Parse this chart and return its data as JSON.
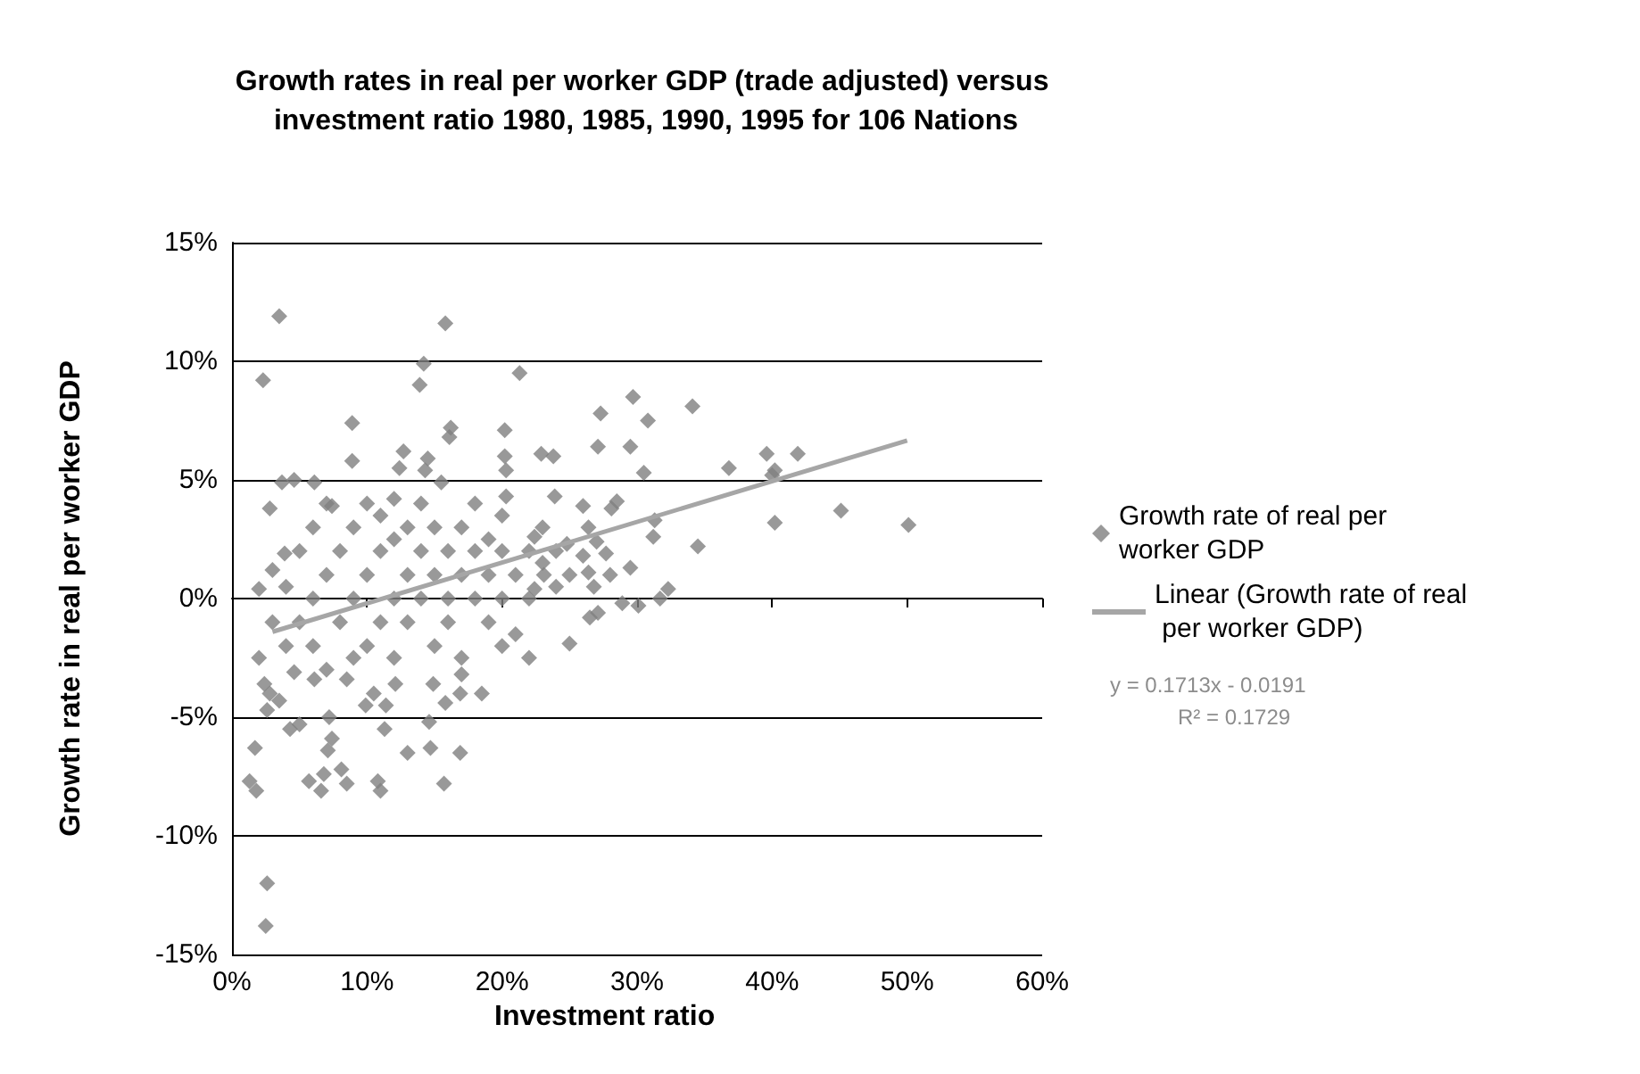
{
  "chart_data": {
    "type": "scatter",
    "title": "Growth rates in real per worker GDP (trade adjusted) versus investment ratio 1980, 1985, 1990, 1995 for 106 Nations",
    "xlabel": "Investment ratio",
    "ylabel": "Growth rate in real per worker GDP",
    "xlim": [
      0,
      60
    ],
    "xticks": [
      {
        "value": 0,
        "label": "0%"
      },
      {
        "value": 10,
        "label": "10%"
      },
      {
        "value": 20,
        "label": "20%"
      },
      {
        "value": 30,
        "label": "30%"
      },
      {
        "value": 40,
        "label": "40%"
      },
      {
        "value": 50,
        "label": "50%"
      },
      {
        "value": 60,
        "label": "60%"
      }
    ],
    "ylim": [
      -15,
      15
    ],
    "yticks": [
      {
        "value": -15,
        "label": "-15%"
      },
      {
        "value": -10,
        "label": "-10%"
      },
      {
        "value": -5,
        "label": "-5%"
      },
      {
        "value": 0,
        "label": "0%"
      },
      {
        "value": 5,
        "label": "5%"
      },
      {
        "value": 10,
        "label": "10%"
      },
      {
        "value": 15,
        "label": "15%"
      }
    ],
    "grid": "y",
    "legend": "right",
    "marker": "diamond",
    "annotations": [
      "y = 0.1713x - 0.0191",
      "R² = 0.1729"
    ],
    "series": [
      {
        "name": "Growth rate of real per worker GDP",
        "color": "#808080",
        "x": [
          3.5,
          15.8,
          2.3,
          14.2,
          13.9,
          8.9,
          16.2,
          16.1,
          8.9,
          12.7,
          12.4,
          14.5,
          14.3,
          3.7,
          4.6,
          6.1,
          15.5,
          2.8,
          7.4,
          3.9,
          2.0,
          2.6,
          2.5,
          1.7,
          1.3,
          1.8,
          5.7,
          6.8,
          6.6,
          8.1,
          8.5,
          10.8,
          11.0,
          15.7,
          13.0,
          14.7,
          16.9,
          11.3,
          14.6,
          7.2,
          7.4,
          7.1,
          4.3,
          5.0,
          2.6,
          3.5,
          2.4,
          2.8,
          8.5,
          9.9,
          12.1,
          14.9,
          15.8,
          16.9,
          18.5,
          10.5,
          11.4,
          4.6,
          6.1,
          21.3,
          29.7,
          34.1,
          27.3,
          30.8,
          27.1,
          29.5,
          20.2,
          20.2,
          20.3,
          22.9,
          23.8,
          39.6,
          41.9,
          36.8,
          30.5,
          40.0,
          40.2,
          45.1,
          40.2,
          50.1,
          34.5,
          32.3,
          31.7,
          28.9,
          30.1,
          26.5,
          25.0,
          31.3,
          31.2,
          28.5,
          28.1,
          26.0,
          26.4,
          23.9,
          20.3,
          22.4,
          24.8,
          27.7,
          29.5,
          26.4,
          23.1,
          26.8,
          22.4,
          27.1,
          5,
          6,
          7,
          8,
          8,
          9,
          9,
          10,
          10,
          10,
          11,
          11,
          11,
          12,
          12,
          12,
          13,
          13,
          13,
          14,
          14,
          14,
          15,
          15,
          15,
          16,
          16,
          16,
          17,
          17,
          17,
          18,
          18,
          18,
          19,
          19,
          19,
          20,
          20,
          20,
          21,
          21,
          22,
          22,
          23,
          23,
          24,
          24,
          25,
          26,
          27,
          28,
          6,
          7,
          4,
          3,
          4,
          5,
          6,
          7,
          9,
          12,
          3,
          2,
          20,
          22,
          17
        ],
        "values": [
          11.9,
          11.6,
          9.2,
          9.9,
          9.0,
          7.4,
          7.2,
          6.8,
          5.8,
          6.2,
          5.5,
          5.9,
          5.4,
          4.9,
          5.0,
          4.9,
          4.9,
          3.8,
          3.9,
          1.9,
          0.4,
          -12.0,
          -13.8,
          -6.3,
          -7.7,
          -8.1,
          -7.7,
          -7.4,
          -8.1,
          -7.2,
          -7.8,
          -7.7,
          -8.1,
          -7.8,
          -6.5,
          -6.3,
          -6.5,
          -5.5,
          -5.2,
          -5.0,
          -5.9,
          -6.4,
          -5.5,
          -5.3,
          -4.7,
          -4.3,
          -3.6,
          -4.0,
          -3.4,
          -4.5,
          -3.6,
          -3.6,
          -4.4,
          -4.0,
          -4.0,
          -4.0,
          -4.5,
          -3.1,
          -3.4,
          9.5,
          8.5,
          8.1,
          7.8,
          7.5,
          6.4,
          6.4,
          7.1,
          6.0,
          5.4,
          6.1,
          6.0,
          6.1,
          6.1,
          5.5,
          5.3,
          5.2,
          5.4,
          3.7,
          3.2,
          3.1,
          2.2,
          0.4,
          0.0,
          -0.2,
          -0.3,
          -0.8,
          -1.9,
          3.3,
          2.6,
          4.1,
          3.8,
          3.9,
          3.0,
          4.3,
          4.3,
          2.6,
          2.3,
          1.9,
          1.3,
          1.1,
          1.0,
          0.5,
          0.4,
          -0.6,
          -1,
          0,
          1,
          -1,
          2,
          0,
          3,
          1,
          -2,
          4,
          2,
          -1,
          3.5,
          0,
          2.5,
          -2.5,
          1,
          3,
          -1,
          2,
          4,
          0,
          1,
          -2,
          3,
          0,
          2,
          -1,
          1,
          3,
          -2.5,
          2,
          0,
          4,
          1,
          -1,
          2.5,
          0,
          2,
          3.5,
          1,
          -1.5,
          2,
          0,
          1.5,
          3,
          0.5,
          2,
          1,
          1.8,
          2.4,
          1,
          -2,
          -3,
          -2,
          -1,
          0.5,
          2,
          3,
          4,
          -2.5,
          4.2,
          1.2,
          -2.5,
          -2,
          -2.5,
          -3.2
        ]
      },
      {
        "name": "Linear (Growth rate of real per worker GDP)",
        "color": "#a6a6a6",
        "type": "line",
        "marker": "none",
        "x": [
          3,
          50
        ],
        "values": [
          -1.4,
          6.66
        ]
      }
    ]
  }
}
